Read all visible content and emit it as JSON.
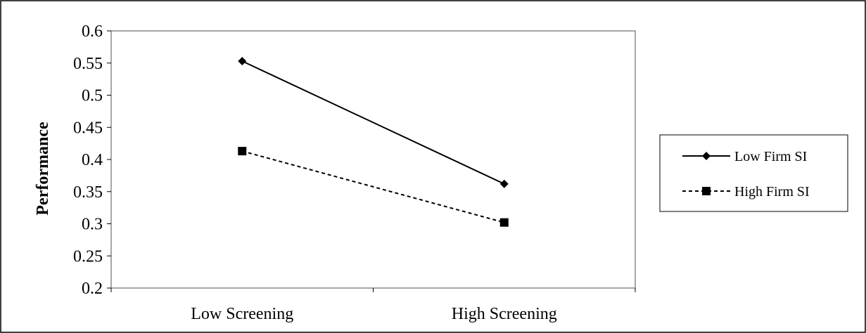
{
  "chart_data": {
    "type": "line",
    "title": "",
    "xlabel": "",
    "ylabel": "Performance",
    "categories": [
      "Low Screening",
      "High Screening"
    ],
    "y_ticks": [
      "0.2",
      "0.25",
      "0.3",
      "0.35",
      "0.4",
      "0.45",
      "0.5",
      "0.55",
      "0.6"
    ],
    "ylim": [
      0.2,
      0.6
    ],
    "grid": false,
    "legend_position": "right",
    "series": [
      {
        "name": "Low Firm SI",
        "values": [
          0.553,
          0.362
        ],
        "line_style": "solid",
        "marker": "diamond",
        "color": "#000000"
      },
      {
        "name": "High Firm SI",
        "values": [
          0.413,
          0.302
        ],
        "line_style": "dashed",
        "marker": "square",
        "color": "#000000"
      }
    ]
  }
}
